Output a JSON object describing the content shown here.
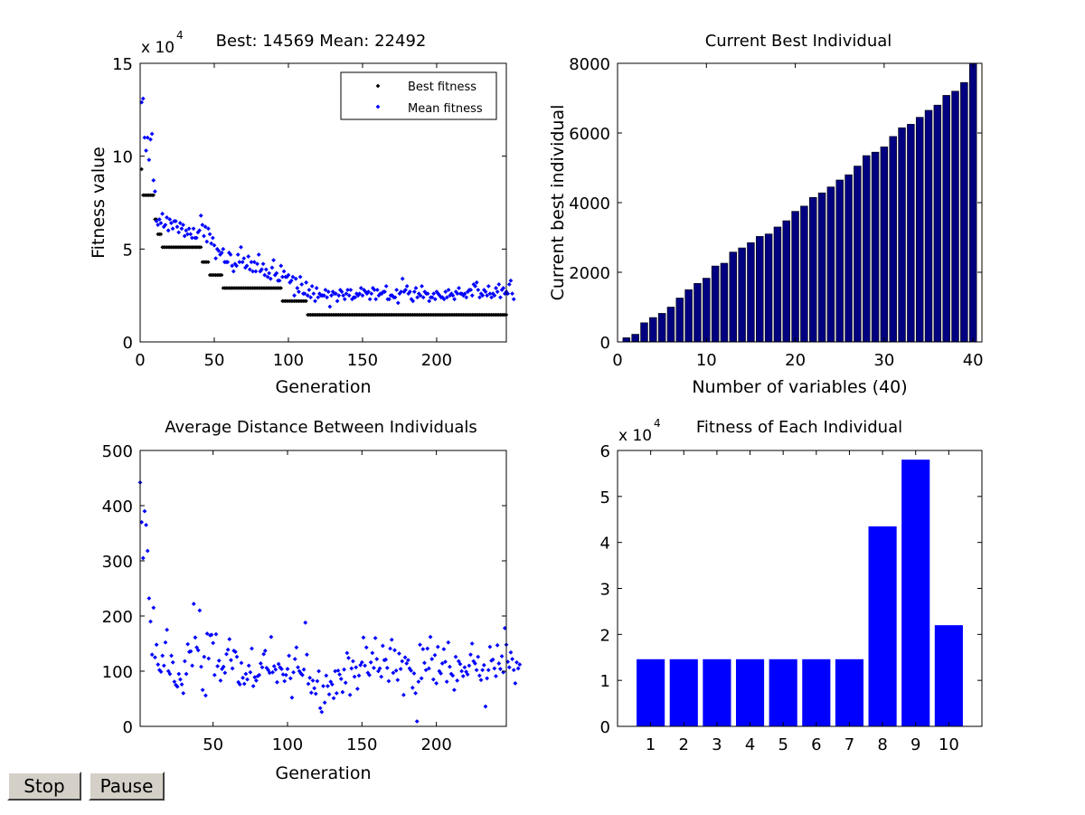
{
  "controls": {
    "stop_label": "Stop",
    "pause_label": "Pause"
  },
  "colors": {
    "best": "#000000",
    "mean": "#0000ff",
    "navy": "#000080",
    "blue": "#0000ff"
  },
  "chart_data": [
    {
      "id": "fitness",
      "type": "scatter",
      "title": "Best: 14569 Mean: 22492",
      "xlabel": "Generation",
      "ylabel": "Fitness value",
      "exponent": "x 10",
      "exponent_power": "4",
      "xlim": [
        0,
        247
      ],
      "ylim": [
        0,
        15
      ],
      "xticks": [
        0,
        50,
        100,
        150,
        200
      ],
      "yticks": [
        0,
        5,
        10,
        15
      ],
      "legend": [
        "Best fitness",
        "Mean fitness"
      ],
      "legend_position": "top-right",
      "best_steps": [
        [
          1,
          9.3
        ],
        [
          2,
          7.9
        ],
        [
          10,
          6.6
        ],
        [
          12,
          5.8
        ],
        [
          15,
          5.1
        ],
        [
          42,
          4.3
        ],
        [
          47,
          3.6
        ],
        [
          56,
          2.9
        ],
        [
          96,
          2.2
        ],
        [
          113,
          1.46
        ]
      ],
      "mean_values": [
        12.9,
        13.1,
        11.0,
        10.3,
        11.0,
        9.8,
        10.9,
        11.2,
        8.7,
        8.1,
        6.5,
        6.3,
        6.6,
        6.4,
        6.9,
        6.2,
        6.3,
        6.7,
        6.0,
        6.6,
        6.4,
        6.1,
        6.5,
        6.5,
        6.2,
        5.9,
        6.4,
        6.1,
        6.3,
        5.7,
        6.0,
        5.8,
        6.1,
        5.8,
        5.6,
        6.1,
        5.6,
        5.6,
        5.9,
        6.0,
        6.8,
        6.3,
        5.7,
        6.2,
        5.4,
        6.1,
        5.8,
        5.3,
        5.6,
        5.2,
        4.5,
        5.0,
        4.9,
        4.7,
        4.8,
        5.0,
        4.3,
        4.3,
        4.3,
        4.8,
        4.7,
        4.1,
        3.8,
        4.2,
        4.1,
        4.7,
        4.3,
        5.1,
        4.3,
        4.5,
        4.0,
        4.1,
        4.6,
        3.9,
        4.3,
        3.8,
        4.3,
        3.8,
        4.2,
        4.7,
        3.8,
        3.9,
        4.2,
        3.6,
        3.9,
        3.5,
        3.7,
        3.4,
        4.0,
        4.4,
        3.6,
        3.7,
        3.3,
        3.3,
        4.1,
        3.5,
        3.8,
        3.5,
        3.5,
        3.6,
        3.2,
        3.3,
        3.5,
        2.5,
        3.4,
        2.9,
        2.7,
        3.5,
        3.1,
        2.6,
        2.6,
        3.2,
        2.5,
        2.8,
        2.4,
        3.0,
        2.6,
        2.2,
        2.9,
        2.4,
        2.6,
        2.5,
        2.5,
        2.5,
        2.8,
        2.4,
        2.7,
        1.9,
        2.5,
        2.7,
        2.6,
        2.6,
        2.2,
        2.5,
        2.8,
        2.7,
        2.5,
        2.3,
        2.6,
        2.8,
        2.5,
        2.8,
        2.3,
        2.4,
        2.4,
        2.6,
        2.5,
        2.6,
        2.9,
        2.5,
        2.8,
        2.7,
        2.6,
        2.7,
        2.3,
        2.6,
        2.9,
        2.8,
        2.3,
        2.8,
        2.5,
        2.6,
        2.6,
        2.7,
        2.7,
        3.0,
        2.3,
        2.3,
        2.5,
        2.5,
        2.4,
        2.4,
        2.8,
        2.1,
        2.6,
        2.7,
        3.4,
        2.7,
        2.8,
        3.0,
        2.6,
        2.7,
        2.3,
        2.2,
        2.7,
        2.9,
        2.4,
        2.6,
        2.5,
        3.0,
        2.4,
        2.7,
        2.6,
        2.6,
        2.2,
        2.4,
        2.4,
        2.6,
        2.3,
        2.7,
        2.6,
        2.5,
        2.4,
        2.4,
        2.3,
        2.7,
        2.4,
        2.8,
        2.5,
        2.6,
        2.5,
        2.3,
        2.7,
        2.6,
        2.9,
        2.6,
        2.6,
        2.5,
        2.6,
        2.4,
        2.7,
        2.8,
        2.8,
        2.5,
        3.1,
        3.0,
        3.2,
        2.8,
        2.4,
        2.6,
        2.5,
        2.8,
        2.7,
        2.5,
        3.0,
        2.6,
        2.4,
        2.6,
        2.5,
        2.9,
        2.7,
        3.1,
        2.4,
        2.8,
        2.9,
        2.6,
        2.7,
        2.6,
        3.1,
        3.3,
        2.6,
        2.3
      ],
      "generations": 247
    },
    {
      "id": "current-best",
      "type": "bar",
      "title": "Current Best Individual",
      "xlabel": "Number of variables (40)",
      "ylabel": "Current best individual",
      "xlim": [
        0,
        41
      ],
      "ylim": [
        0,
        8000
      ],
      "xticks": [
        0,
        10,
        20,
        30,
        40
      ],
      "yticks": [
        0,
        2000,
        4000,
        6000,
        8000
      ],
      "values": [
        120,
        220,
        550,
        700,
        820,
        1000,
        1260,
        1500,
        1680,
        1830,
        2180,
        2260,
        2580,
        2700,
        2850,
        3030,
        3100,
        3300,
        3480,
        3750,
        3900,
        4150,
        4280,
        4450,
        4650,
        4800,
        5050,
        5350,
        5450,
        5600,
        5900,
        6150,
        6250,
        6450,
        6650,
        6800,
        7080,
        7200,
        7450,
        8000
      ]
    },
    {
      "id": "avg-distance",
      "type": "scatter",
      "title": "Average Distance Between Individuals",
      "xlabel": "Generation",
      "ylabel": "",
      "xlim": [
        1,
        247
      ],
      "ylim": [
        0,
        500
      ],
      "xticks": [
        50,
        100,
        150,
        200
      ],
      "yticks": [
        0,
        100,
        200,
        300,
        400,
        500
      ],
      "values": [
        442,
        370,
        305,
        390,
        365,
        318,
        232,
        190,
        130,
        215,
        125,
        148,
        112,
        102,
        99,
        128,
        110,
        152,
        175,
        100,
        95,
        128,
        116,
        81,
        75,
        72,
        95,
        85,
        76,
        60,
        118,
        95,
        149,
        135,
        136,
        110,
        222,
        161,
        143,
        138,
        210,
        108,
        66,
        126,
        56,
        168,
        123,
        165,
        166,
        151,
        93,
        167,
        109,
        119,
        83,
        104,
        108,
        97,
        131,
        139,
        158,
        120,
        105,
        137,
        135,
        126,
        80,
        76,
        115,
        88,
        77,
        95,
        85,
        110,
        98,
        141,
        73,
        89,
        83,
        91,
        93,
        114,
        107,
        131,
        137,
        106,
        102,
        97,
        162,
        98,
        109,
        103,
        80,
        113,
        107,
        104,
        94,
        82,
        93,
        104,
        128,
        87,
        52,
        98,
        122,
        143,
        107,
        100,
        96,
        93,
        103,
        188,
        130,
        77,
        88,
        61,
        83,
        69,
        59,
        82,
        100,
        33,
        26,
        73,
        43,
        92,
        73,
        58,
        81,
        76,
        51,
        100,
        60,
        101,
        94,
        86,
        62,
        103,
        79,
        133,
        124,
        57,
        105,
        118,
        90,
        107,
        68,
        92,
        111,
        116,
        161,
        110,
        143,
        97,
        93,
        116,
        133,
        106,
        160,
        122,
        100,
        105,
        90,
        146,
        120,
        121,
        106,
        82,
        141,
        157,
        97,
        138,
        101,
        84,
        132,
        104,
        118,
        57,
        125,
        114,
        120,
        105,
        101,
        70,
        96,
        60,
        9,
        81,
        148,
        87,
        140,
        115,
        102,
        141,
        105,
        162,
        122,
        85,
        129,
        78,
        144,
        100,
        96,
        114,
        140,
        117,
        81,
        152,
        108,
        95,
        92,
        66,
        126,
        83,
        118,
        113,
        100,
        91,
        107,
        99,
        94,
        110,
        130,
        150,
        118,
        114,
        102,
        126,
        92,
        84,
        102,
        111,
        36,
        87,
        102,
        144,
        119,
        121,
        105,
        91,
        147,
        114,
        104,
        127,
        98,
        178,
        148,
        117,
        107,
        134,
        122,
        102,
        78,
        116,
        105,
        112
      ]
    },
    {
      "id": "fitness-each",
      "type": "bar",
      "title": "Fitness of Each Individual",
      "exponent": "x 10",
      "exponent_power": "4",
      "xlim": [
        0,
        11
      ],
      "ylim": [
        0,
        6
      ],
      "categories": [
        "1",
        "2",
        "3",
        "4",
        "5",
        "6",
        "7",
        "8",
        "9",
        "10"
      ],
      "yticks": [
        0,
        1,
        2,
        3,
        4,
        5,
        6
      ],
      "values": [
        1.46,
        1.46,
        1.46,
        1.46,
        1.46,
        1.46,
        1.46,
        4.35,
        5.8,
        2.2
      ]
    }
  ]
}
